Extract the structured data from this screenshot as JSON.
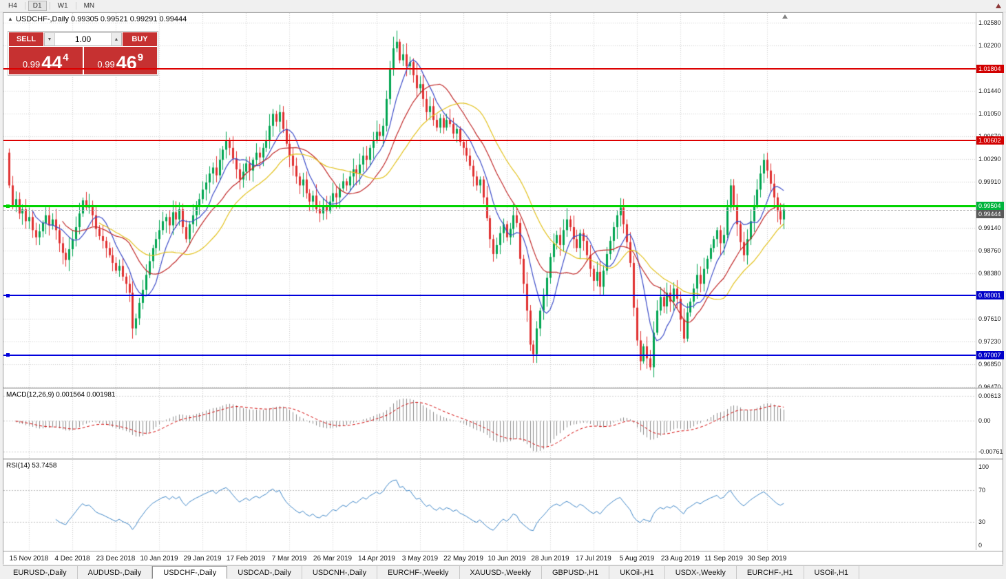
{
  "toolbar": {
    "timeframes": [
      "H4",
      "D1",
      "W1",
      "MN"
    ],
    "active": "D1"
  },
  "chart_header": {
    "title": "USDCHF-,Daily 0.99305 0.99521 0.99291 0.99444"
  },
  "trade_panel": {
    "sell_label": "SELL",
    "buy_label": "BUY",
    "volume": "1.00",
    "sell_price": {
      "prefix": "0.99",
      "big": "44",
      "sup": "4"
    },
    "buy_price": {
      "prefix": "0.99",
      "big": "46",
      "sup": "9"
    }
  },
  "price_axis": {
    "labels": [
      {
        "text": "1.02580",
        "value": 1.0258
      },
      {
        "text": "1.02200",
        "value": 1.022
      },
      {
        "text": "1.01440",
        "value": 1.0144
      },
      {
        "text": "1.01050",
        "value": 1.0105
      },
      {
        "text": "1.00670",
        "value": 1.0067
      },
      {
        "text": "1.00290",
        "value": 1.0029
      },
      {
        "text": "0.99910",
        "value": 0.9991
      },
      {
        "text": "0.99140",
        "value": 0.9914
      },
      {
        "text": "0.98760",
        "value": 0.9876
      },
      {
        "text": "0.98380",
        "value": 0.9838
      },
      {
        "text": "0.97610",
        "value": 0.9761
      },
      {
        "text": "0.97230",
        "value": 0.9723
      },
      {
        "text": "0.96850",
        "value": 0.9685
      },
      {
        "text": "0.96470",
        "value": 0.9647
      }
    ],
    "tags": [
      {
        "text": "1.01804",
        "value": 1.01804,
        "color": "#d20000",
        "name": "price-tag-resistance-upper"
      },
      {
        "text": "1.00602",
        "value": 1.00602,
        "color": "#d20000",
        "name": "price-tag-resistance-lower"
      },
      {
        "text": "0.99504",
        "value": 0.99504,
        "color": "#00b43c",
        "name": "price-tag-pivot"
      },
      {
        "text": "0.99444",
        "value": 0.99444,
        "color": "#5a5a5a",
        "name": "price-tag-bid"
      },
      {
        "text": "0.98001",
        "value": 0.98001,
        "color": "#0000c8",
        "name": "price-tag-support-upper"
      },
      {
        "text": "0.97007",
        "value": 0.97007,
        "color": "#0000c8",
        "name": "price-tag-support-lower"
      }
    ]
  },
  "hlines": [
    {
      "value": 1.01804,
      "color": "#dd0000",
      "thickness": 2,
      "handle": false,
      "name": "resistance-line-1.01804"
    },
    {
      "value": 1.00602,
      "color": "#dd0000",
      "thickness": 2,
      "handle": false,
      "name": "resistance-line-1.00602"
    },
    {
      "value": 0.99504,
      "color": "#00d400",
      "thickness": 3,
      "handle": true,
      "name": "pivot-line-0.99504"
    },
    {
      "value": 0.98001,
      "color": "#0000dd",
      "thickness": 2,
      "handle": true,
      "name": "support-line-0.98001"
    },
    {
      "value": 0.97007,
      "color": "#0000dd",
      "thickness": 2,
      "handle": true,
      "name": "support-line-0.97007"
    }
  ],
  "bid_line": {
    "value": 0.99444
  },
  "chart_data": {
    "type": "candlestick",
    "symbol": "USDCHF-",
    "timeframe": "Daily",
    "title": "USDCHF-,Daily",
    "ohlc_display": {
      "open": 0.99305,
      "high": 0.99521,
      "low": 0.99291,
      "close": 0.99444
    },
    "ylim": [
      0.9647,
      1.0258
    ],
    "first_open": 1.004,
    "closes": [
      0.9985,
      0.995,
      0.9962,
      0.9938,
      0.9945,
      0.9925,
      0.9932,
      0.991,
      0.9898,
      0.9908,
      0.9922,
      0.9935,
      0.9918,
      0.9928,
      0.991,
      0.9888,
      0.9872,
      0.986,
      0.9878,
      0.9895,
      0.9915,
      0.9938,
      0.996,
      0.9948,
      0.9952,
      0.9935,
      0.9912,
      0.99,
      0.9892,
      0.988,
      0.9868,
      0.9855,
      0.9842,
      0.985,
      0.9832,
      0.982,
      0.9805,
      0.9745,
      0.9762,
      0.9788,
      0.981,
      0.9835,
      0.9858,
      0.988,
      0.9895,
      0.991,
      0.9925,
      0.9932,
      0.9918,
      0.994,
      0.9928,
      0.9945,
      0.9915,
      0.9895,
      0.992,
      0.9935,
      0.995,
      0.9962,
      0.9978,
      0.999,
      1.0005,
      1.0015,
      1.0002,
      1.0028,
      1.0045,
      1.006,
      1.0048,
      1.003,
      1.0012,
      0.9995,
      1.0008,
      1.0022,
      1.001,
      1.0028,
      1.004,
      1.0032,
      1.0048,
      1.006,
      1.0085,
      1.0105,
      1.0092,
      1.0108,
      1.008,
      1.0055,
      1.0035,
      1.0018,
      1.0,
      0.9985,
      0.9995,
      0.9972,
      0.9958,
      0.9968,
      0.9945,
      0.9938,
      0.995,
      0.9942,
      0.9958,
      0.9972,
      0.9965,
      0.998,
      0.9992,
      0.9985,
      1.0,
      1.0012,
      1.0005,
      1.002,
      1.0035,
      1.0028,
      1.0048,
      1.006,
      1.0075,
      1.0068,
      1.0085,
      1.013,
      1.018,
      1.0215,
      1.0226,
      1.0195,
      1.0205,
      1.0185,
      1.0192,
      1.017,
      1.0148,
      1.0155,
      1.013,
      1.0108,
      1.0118,
      1.0095,
      1.0082,
      1.0098,
      1.0082,
      1.0095,
      1.0088,
      1.0072,
      1.008,
      1.0058,
      1.0048,
      1.0035,
      1.0018,
      1.0,
      0.9985,
      0.9995,
      0.9965,
      0.993,
      0.9895,
      0.987,
      0.9885,
      0.9905,
      0.992,
      0.9898,
      0.9912,
      0.9935,
      0.9922,
      0.9862,
      0.982,
      0.9775,
      0.9718,
      0.9702,
      0.9745,
      0.9775,
      0.98,
      0.983,
      0.9865,
      0.9888,
      0.9902,
      0.9885,
      0.991,
      0.9928,
      0.9915,
      0.9895,
      0.988,
      0.9905,
      0.9892,
      0.9868,
      0.9845,
      0.9825,
      0.984,
      0.9815,
      0.9842,
      0.987,
      0.9892,
      0.9915,
      0.9935,
      0.9948,
      0.992,
      0.989,
      0.9855,
      0.978,
      0.9725,
      0.969,
      0.9715,
      0.9695,
      0.968,
      0.9738,
      0.9775,
      0.9798,
      0.9782,
      0.9805,
      0.979,
      0.9812,
      0.9795,
      0.976,
      0.9728,
      0.9772,
      0.979,
      0.9812,
      0.9835,
      0.982,
      0.9845,
      0.9862,
      0.988,
      0.9895,
      0.991,
      0.9888,
      0.9902,
      0.9948,
      0.9985,
      0.9952,
      0.992,
      0.989,
      0.9868,
      0.9895,
      0.9925,
      0.9952,
      0.9978,
      1.0005,
      1.0028,
      1.001,
      0.9988,
      0.9965,
      0.9942,
      0.9928,
      0.99444
    ],
    "date_ticks": [
      "15 Nov 2018",
      "4 Dec 2018",
      "23 Dec 2018",
      "10 Jan 2019",
      "29 Jan 2019",
      "17 Feb 2019",
      "7 Mar 2019",
      "26 Mar 2019",
      "14 Apr 2019",
      "3 May 2019",
      "22 May 2019",
      "10 Jun 2019",
      "28 Jun 2019",
      "17 Jul 2019",
      "5 Aug 2019",
      "23 Aug 2019",
      "11 Sep 2019",
      "30 Sep 2019"
    ],
    "moving_averages": [
      {
        "period": 8,
        "color": "#3b4bc8",
        "name": "ma-fast-blue"
      },
      {
        "period": 17,
        "color": "#c02828",
        "name": "ma-medium-red"
      },
      {
        "period": 28,
        "color": "#e2c11c",
        "name": "ma-slow-yellow"
      }
    ],
    "levels": [
      1.01804,
      1.00602,
      0.99504,
      0.98001,
      0.97007
    ],
    "colors": {
      "up": "#00a551",
      "down": "#e03030"
    }
  },
  "macd_panel": {
    "label": "MACD(12,26,9) 0.001564 0.001981",
    "params": [
      12,
      26,
      9
    ],
    "values": [
      0.001564,
      0.001981
    ],
    "axis": [
      {
        "text": "0.00613",
        "value": 0.00613
      },
      {
        "text": "0.00",
        "value": 0
      },
      {
        "text": "-0.00761",
        "value": -0.00761
      }
    ],
    "histogram_color": "#8c8c8c",
    "signal_color": "#d20000"
  },
  "rsi_panel": {
    "label": "RSI(14) 53.7458",
    "period": 14,
    "value": 53.7458,
    "axis": [
      {
        "text": "100",
        "value": 100
      },
      {
        "text": "70",
        "value": 70
      },
      {
        "text": "30",
        "value": 30
      },
      {
        "text": "0",
        "value": 0
      }
    ],
    "guides": [
      70,
      30
    ],
    "line_color": "#3d85c6"
  },
  "tabs": {
    "items": [
      "EURUSD-,Daily",
      "AUDUSD-,Daily",
      "USDCHF-,Daily",
      "USDCAD-,Daily",
      "USDCNH-,Daily",
      "EURCHF-,Weekly",
      "XAUUSD-,Weekly",
      "GBPUSD-,H1",
      "UKOil-,H1",
      "USDX-,Weekly",
      "EURCHF-,H1",
      "USOil-,H1"
    ],
    "active": "USDCHF-,Daily"
  }
}
